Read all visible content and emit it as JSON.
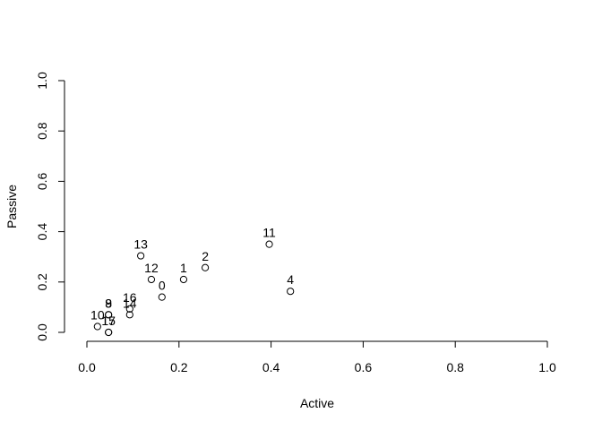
{
  "chart_data": {
    "type": "scatter",
    "title": "",
    "xlabel": "Active",
    "ylabel": "Passive",
    "xlim": [
      0,
      1
    ],
    "ylim": [
      0,
      1
    ],
    "xticks": [
      "0.0",
      "0.2",
      "0.4",
      "0.6",
      "0.8",
      "1.0"
    ],
    "yticks": [
      "0.0",
      "0.2",
      "0.4",
      "0.6",
      "0.8",
      "1.0"
    ],
    "grid": false,
    "marker": "open-circle",
    "points": [
      {
        "label": "0",
        "x": 0.163,
        "y": 0.14
      },
      {
        "label": "1",
        "x": 0.21,
        "y": 0.21
      },
      {
        "label": "2",
        "x": 0.257,
        "y": 0.257
      },
      {
        "label": "4",
        "x": 0.442,
        "y": 0.163
      },
      {
        "label": "11",
        "x": 0.396,
        "y": 0.35
      },
      {
        "label": "12",
        "x": 0.14,
        "y": 0.21
      },
      {
        "label": "13",
        "x": 0.117,
        "y": 0.304
      },
      {
        "label": "16",
        "x": 0.093,
        "y": 0.093
      },
      {
        "label": "14",
        "x": 0.093,
        "y": 0.07
      },
      {
        "label": "8",
        "x": 0.047,
        "y": 0.07
      },
      {
        "label": "9",
        "x": 0.047,
        "y": 0.07
      },
      {
        "label": "10",
        "x": 0.023,
        "y": 0.023
      },
      {
        "label": "15",
        "x": 0.047,
        "y": 0.0
      },
      {
        "label": "17",
        "x": 0.047,
        "y": 0.0
      }
    ]
  }
}
